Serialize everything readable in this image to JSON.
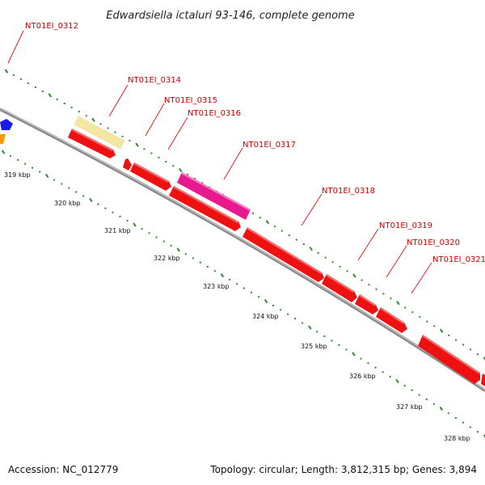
{
  "title": "Edwardsiella ictaluri 93-146, complete genome",
  "footer": {
    "accession": "Accession: NC_012779",
    "topology": "Topology: circular; Length: 3,812,315 bp; Genes: 3,894"
  },
  "colors": {
    "backbone": "#8a8a8a",
    "cds": "#ee1111",
    "gene_yellow": "#f2e6a0",
    "gene_magenta": "#e8198f",
    "label": "#cc0000",
    "tick_dots": "#2e8b2e",
    "edge_blue": "#1a1aee",
    "edge_orange": "#ff9900"
  },
  "kbp_labels": [
    "319 kbp",
    "320 kbp",
    "321 kbp",
    "322 kbp",
    "323 kbp",
    "324 kbp",
    "325 kbp",
    "326 kbp",
    "327 kbp",
    "328 kbp"
  ],
  "genes": [
    {
      "label": "NT01EI_0312",
      "color": "#ee1111"
    },
    {
      "label": "NT01EI_0314",
      "color": "#f2e6a0"
    },
    {
      "label": "NT01EI_0315",
      "color": "#ee1111"
    },
    {
      "label": "NT01EI_0316",
      "color": "#ee1111"
    },
    {
      "label": "NT01EI_0317",
      "color": "#e8198f"
    },
    {
      "label": "NT01EI_0318",
      "color": "#ee1111"
    },
    {
      "label": "NT01EI_0319",
      "color": "#ee1111"
    },
    {
      "label": "NT01EI_0320",
      "color": "#ee1111"
    },
    {
      "label": "NT01EI_0321",
      "color": "#ee1111"
    }
  ]
}
